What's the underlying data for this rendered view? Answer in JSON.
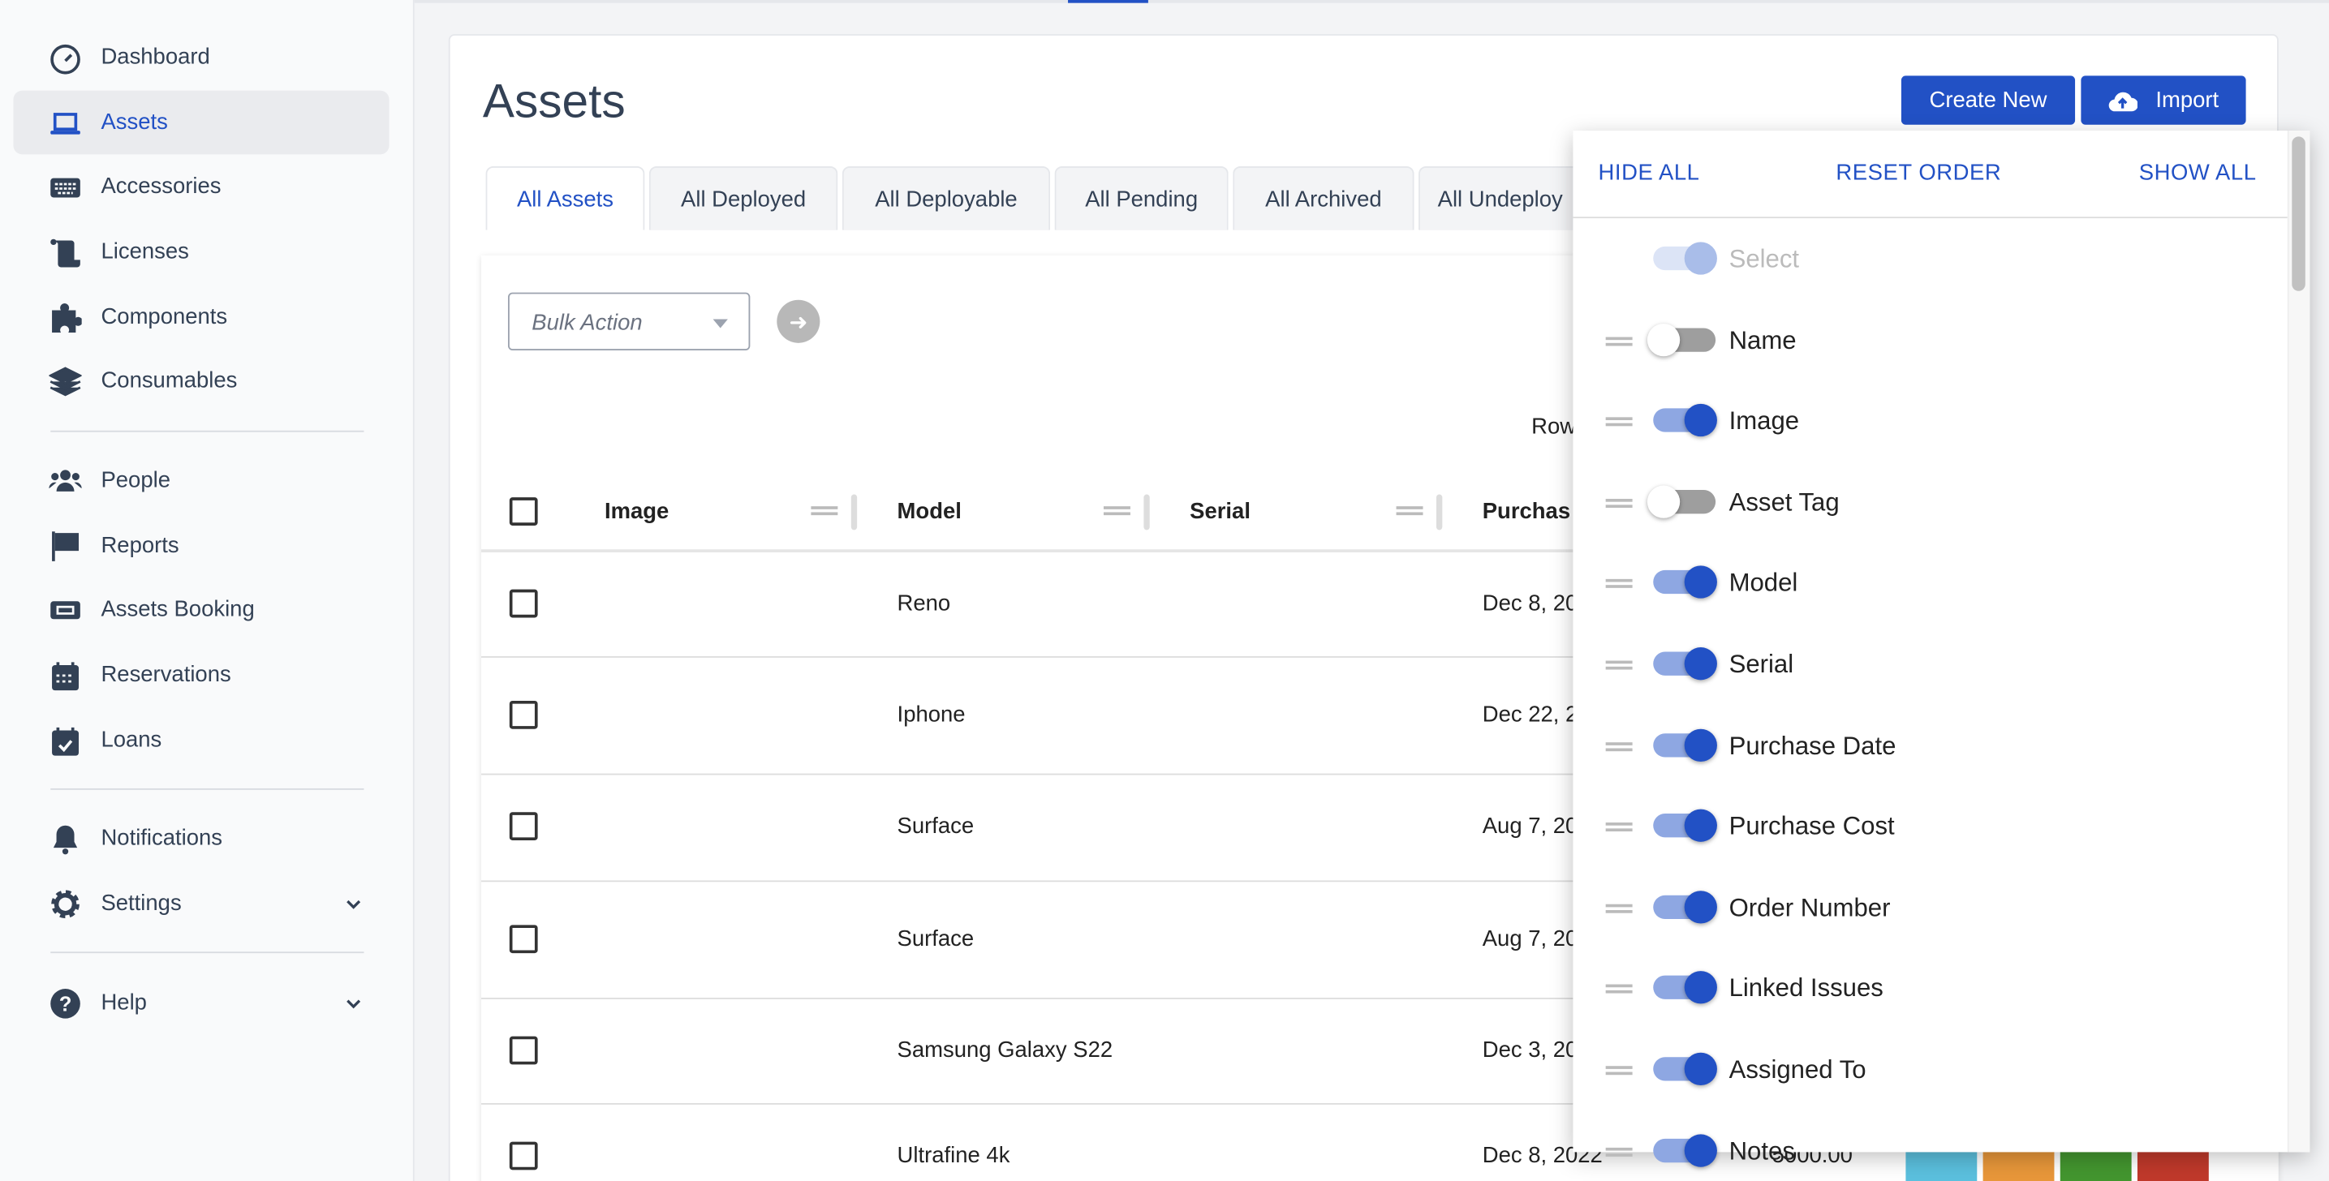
{
  "sidebar": {
    "items": [
      {
        "label": "Dashboard",
        "icon": "gauge-icon"
      },
      {
        "label": "Assets",
        "icon": "laptop-icon",
        "active": true
      },
      {
        "label": "Accessories",
        "icon": "keyboard-icon"
      },
      {
        "label": "Licenses",
        "icon": "scroll-icon"
      },
      {
        "label": "Components",
        "icon": "puzzle-icon"
      },
      {
        "label": "Consumables",
        "icon": "layers-icon"
      },
      {
        "label": "People",
        "icon": "users-icon"
      },
      {
        "label": "Reports",
        "icon": "flag-icon"
      },
      {
        "label": "Assets Booking",
        "icon": "ticket-icon"
      },
      {
        "label": "Reservations",
        "icon": "calendar-icon"
      },
      {
        "label": "Loans",
        "icon": "calendar-check-icon"
      },
      {
        "label": "Notifications",
        "icon": "bell-icon"
      },
      {
        "label": "Settings",
        "icon": "gear-icon"
      },
      {
        "label": "Help",
        "icon": "question-icon"
      }
    ]
  },
  "page": {
    "title": "Assets",
    "create_label": "Create New",
    "import_label": "Import"
  },
  "tabs": [
    "All Assets",
    "All Deployed",
    "All Deployable",
    "All Pending",
    "All Archived",
    "All Undeploy"
  ],
  "toolbar": {
    "bulk_placeholder": "Bulk Action",
    "rows_label": "Row"
  },
  "table": {
    "headers": [
      "Image",
      "Model",
      "Serial",
      "Purchas"
    ],
    "rows": [
      {
        "model": "Reno",
        "date": "Dec 8, 20"
      },
      {
        "model": "Iphone",
        "date": "Dec 22, 2"
      },
      {
        "model": "Surface",
        "date": "Aug 7, 20"
      },
      {
        "model": "Surface",
        "date": "Aug 7, 20"
      },
      {
        "model": "Samsung Galaxy S22",
        "date": "Dec 3, 20"
      },
      {
        "model": "Ultrafine 4k",
        "date": "Dec 8, 2022",
        "cost": "5000.00"
      }
    ]
  },
  "columns_panel": {
    "hide_all": "HIDE ALL",
    "reset_order": "RESET ORDER",
    "show_all": "SHOW ALL",
    "items": [
      {
        "label": "Select",
        "on": true,
        "disabled": true
      },
      {
        "label": "Name",
        "on": false
      },
      {
        "label": "Image",
        "on": true
      },
      {
        "label": "Asset Tag",
        "on": false
      },
      {
        "label": "Model",
        "on": true
      },
      {
        "label": "Serial",
        "on": true
      },
      {
        "label": "Purchase Date",
        "on": true
      },
      {
        "label": "Purchase Cost",
        "on": true
      },
      {
        "label": "Order Number",
        "on": true
      },
      {
        "label": "Linked Issues",
        "on": true
      },
      {
        "label": "Assigned To",
        "on": true
      },
      {
        "label": "Notes",
        "on": true
      }
    ]
  },
  "colors": {
    "accent": "#2251c5",
    "action_buttons": [
      "#5bc0de",
      "#e8973a",
      "#43962f",
      "#c0392b"
    ]
  }
}
